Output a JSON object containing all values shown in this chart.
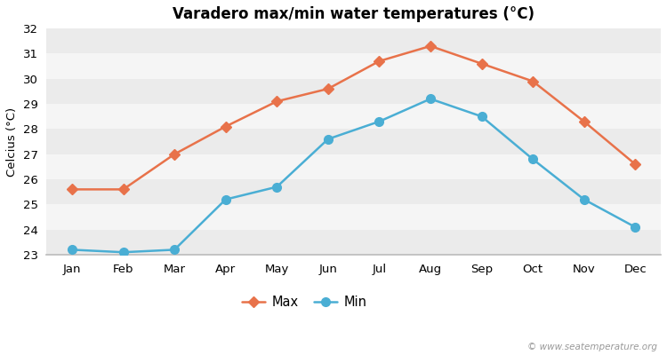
{
  "title": "Varadero max/min water temperatures (°C)",
  "ylabel": "Celcius (°C)",
  "months": [
    "Jan",
    "Feb",
    "Mar",
    "Apr",
    "May",
    "Jun",
    "Jul",
    "Aug",
    "Sep",
    "Oct",
    "Nov",
    "Dec"
  ],
  "max_temps": [
    25.6,
    25.6,
    27.0,
    28.1,
    29.1,
    29.6,
    30.7,
    31.3,
    30.6,
    29.9,
    28.3,
    26.6
  ],
  "min_temps": [
    23.2,
    23.1,
    23.2,
    25.2,
    25.7,
    27.6,
    28.3,
    29.2,
    28.5,
    26.8,
    25.2,
    24.1
  ],
  "max_color": "#e8724a",
  "min_color": "#4aaed4",
  "bg_color": "#ffffff",
  "band_color_light": "#ebebeb",
  "band_color_dark": "#f5f5f5",
  "ylim": [
    23,
    32
  ],
  "yticks": [
    23,
    24,
    25,
    26,
    27,
    28,
    29,
    30,
    31,
    32
  ],
  "legend_labels": [
    "Max",
    "Min"
  ],
  "watermark": "© www.seatemperature.org",
  "marker_size": 6,
  "line_width": 1.8
}
